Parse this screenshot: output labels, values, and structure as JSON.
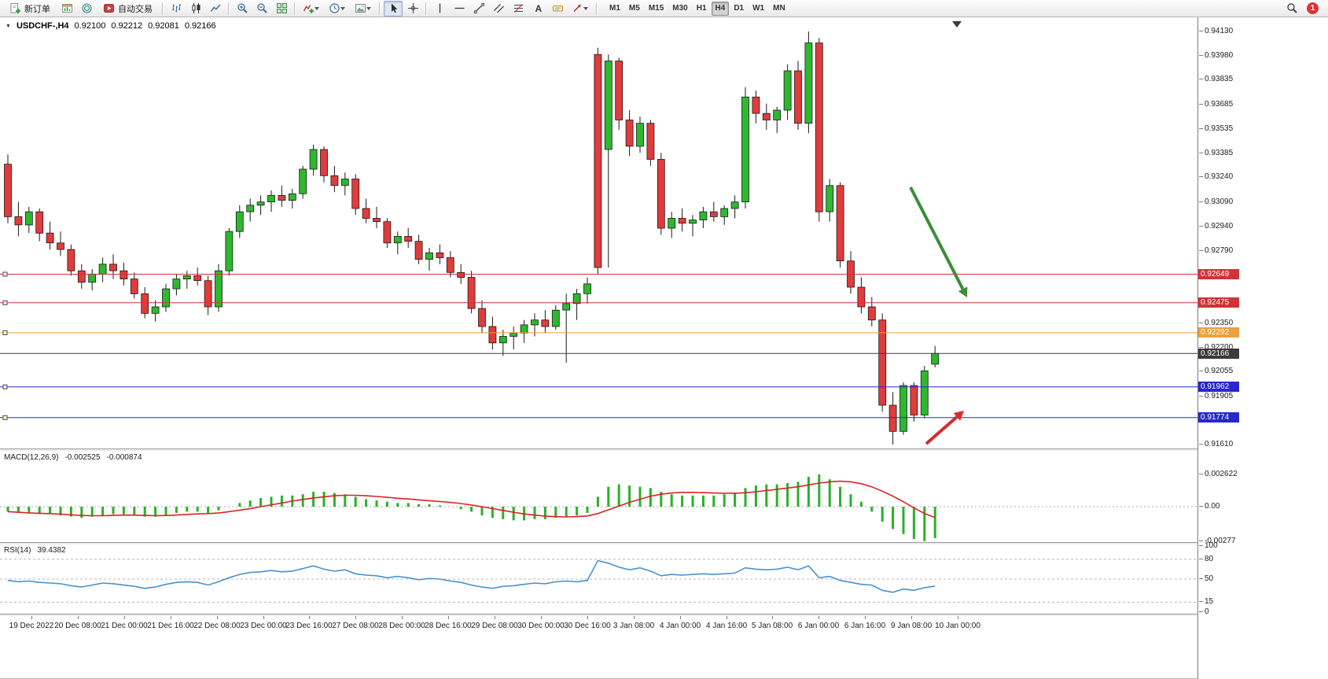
{
  "toolbar": {
    "new_order": "新订单",
    "autotrade": "自动交易",
    "timeframes": [
      "M1",
      "M5",
      "M15",
      "M30",
      "H1",
      "H4",
      "D1",
      "W1",
      "MN"
    ],
    "active_timeframe": "H4",
    "notification_count": "1"
  },
  "chart_header": {
    "symbol_period": "USDCHF-,H4",
    "open": "0.92100",
    "high": "0.92212",
    "low": "0.92081",
    "close": "0.92166"
  },
  "indicators": {
    "macd": {
      "name": "MACD(12,26,9)",
      "main_value": "-0.002525",
      "signal_value": "-0.000874"
    },
    "rsi": {
      "name": "RSI(14)",
      "value": "39.4382"
    }
  },
  "chart_data": [
    {
      "type": "candlestick",
      "title": "USDCHF-,H4",
      "timeframe": "H4",
      "ylim": [
        0.9161,
        0.9413
      ],
      "y_ticks": [
        "0.94130",
        "0.93980",
        "0.93835",
        "0.93685",
        "0.93535",
        "0.93385",
        "0.93240",
        "0.93090",
        "0.92940",
        "0.92790",
        "0.92350",
        "0.92200",
        "0.92055",
        "0.91905",
        "0.91610"
      ],
      "x_labels": [
        "19 Dec 2022",
        "20 Dec 08:00",
        "21 Dec 00:00",
        "21 Dec 16:00",
        "22 Dec 08:00",
        "23 Dec 00:00",
        "23 Dec 16:00",
        "27 Dec 08:00",
        "28 Dec 00:00",
        "28 Dec 16:00",
        "29 Dec 08:00",
        "30 Dec 00:00",
        "30 Dec 16:00",
        "3 Jan 08:00",
        "4 Jan 00:00",
        "4 Jan 16:00",
        "5 Jan 08:00",
        "6 Jan 00:00",
        "6 Jan 16:00",
        "9 Jan 08:00",
        "10 Jan 00:00"
      ],
      "up_color": "#2db82d",
      "down_color": "#e23b3b",
      "candles": [
        [
          0.9332,
          0.9338,
          0.9296,
          0.93
        ],
        [
          0.93,
          0.9309,
          0.9288,
          0.9295
        ],
        [
          0.9295,
          0.9306,
          0.929,
          0.9303
        ],
        [
          0.9303,
          0.9305,
          0.9285,
          0.929
        ],
        [
          0.929,
          0.9297,
          0.928,
          0.9284
        ],
        [
          0.9284,
          0.9291,
          0.9276,
          0.928
        ],
        [
          0.928,
          0.9283,
          0.9264,
          0.9267
        ],
        [
          0.9267,
          0.9271,
          0.9256,
          0.926
        ],
        [
          0.926,
          0.9268,
          0.9255,
          0.9265
        ],
        [
          0.9265,
          0.9275,
          0.926,
          0.9271
        ],
        [
          0.9271,
          0.9277,
          0.9262,
          0.9267
        ],
        [
          0.9267,
          0.9272,
          0.9258,
          0.9262
        ],
        [
          0.9262,
          0.9266,
          0.925,
          0.9253
        ],
        [
          0.9253,
          0.9257,
          0.9238,
          0.9241
        ],
        [
          0.9241,
          0.9249,
          0.9236,
          0.9245
        ],
        [
          0.9245,
          0.9259,
          0.9242,
          0.9256
        ],
        [
          0.9256,
          0.9265,
          0.9252,
          0.9262
        ],
        [
          0.9262,
          0.9267,
          0.9256,
          0.9264
        ],
        [
          0.9264,
          0.9269,
          0.9258,
          0.9261
        ],
        [
          0.9261,
          0.9264,
          0.924,
          0.9245
        ],
        [
          0.9245,
          0.9271,
          0.9242,
          0.9267
        ],
        [
          0.9267,
          0.9293,
          0.9264,
          0.9291
        ],
        [
          0.9291,
          0.9307,
          0.9287,
          0.9303
        ],
        [
          0.9303,
          0.9311,
          0.9297,
          0.9307
        ],
        [
          0.9307,
          0.9313,
          0.9301,
          0.9309
        ],
        [
          0.9309,
          0.9316,
          0.9303,
          0.9313
        ],
        [
          0.9313,
          0.9319,
          0.9306,
          0.931
        ],
        [
          0.931,
          0.9317,
          0.9305,
          0.9314
        ],
        [
          0.9314,
          0.9331,
          0.9311,
          0.9329
        ],
        [
          0.9329,
          0.9344,
          0.9325,
          0.9341
        ],
        [
          0.9341,
          0.9343,
          0.9321,
          0.9325
        ],
        [
          0.9325,
          0.9331,
          0.9315,
          0.9319
        ],
        [
          0.9319,
          0.9327,
          0.9313,
          0.9323
        ],
        [
          0.9323,
          0.9326,
          0.9301,
          0.9305
        ],
        [
          0.9305,
          0.9311,
          0.9296,
          0.9299
        ],
        [
          0.9299,
          0.9306,
          0.9293,
          0.9297
        ],
        [
          0.9297,
          0.9299,
          0.9281,
          0.9284
        ],
        [
          0.9284,
          0.9291,
          0.9277,
          0.9288
        ],
        [
          0.9288,
          0.9293,
          0.9281,
          0.9285
        ],
        [
          0.9285,
          0.9289,
          0.9271,
          0.9274
        ],
        [
          0.9274,
          0.9281,
          0.9267,
          0.9278
        ],
        [
          0.9278,
          0.9283,
          0.9271,
          0.9275
        ],
        [
          0.9275,
          0.9279,
          0.9263,
          0.9266
        ],
        [
          0.9266,
          0.9271,
          0.9259,
          0.9263
        ],
        [
          0.9263,
          0.9267,
          0.9241,
          0.9244
        ],
        [
          0.9244,
          0.9249,
          0.9229,
          0.9233
        ],
        [
          0.9233,
          0.9239,
          0.9219,
          0.9223
        ],
        [
          0.9223,
          0.9231,
          0.9215,
          0.9227
        ],
        [
          0.9227,
          0.9233,
          0.9219,
          0.9229
        ],
        [
          0.9229,
          0.9237,
          0.9223,
          0.9234
        ],
        [
          0.9234,
          0.9241,
          0.9227,
          0.9237
        ],
        [
          0.9237,
          0.9243,
          0.9229,
          0.9233
        ],
        [
          0.9233,
          0.9246,
          0.9231,
          0.9243
        ],
        [
          0.9243,
          0.9253,
          0.9211,
          0.9247
        ],
        [
          0.9247,
          0.9256,
          0.9237,
          0.9253
        ],
        [
          0.9253,
          0.9263,
          0.9247,
          0.9259
        ],
        [
          0.9399,
          0.9403,
          0.9265,
          0.9269
        ],
        [
          0.9341,
          0.9399,
          0.9269,
          0.9395
        ],
        [
          0.9395,
          0.9397,
          0.9353,
          0.9359
        ],
        [
          0.9359,
          0.9365,
          0.9337,
          0.9343
        ],
        [
          0.9343,
          0.9361,
          0.9339,
          0.9357
        ],
        [
          0.9357,
          0.9359,
          0.9331,
          0.9335
        ],
        [
          0.9335,
          0.9339,
          0.9289,
          0.9293
        ],
        [
          0.9293,
          0.9303,
          0.9287,
          0.9299
        ],
        [
          0.9299,
          0.9305,
          0.9291,
          0.9296
        ],
        [
          0.9296,
          0.9301,
          0.9288,
          0.9298
        ],
        [
          0.9298,
          0.9306,
          0.9293,
          0.9303
        ],
        [
          0.9303,
          0.9309,
          0.9297,
          0.93
        ],
        [
          0.93,
          0.9307,
          0.9295,
          0.9305
        ],
        [
          0.9305,
          0.9313,
          0.9299,
          0.9309
        ],
        [
          0.9309,
          0.9379,
          0.9305,
          0.9373
        ],
        [
          0.9373,
          0.9377,
          0.9357,
          0.9363
        ],
        [
          0.9363,
          0.9369,
          0.9353,
          0.9359
        ],
        [
          0.9359,
          0.9367,
          0.9351,
          0.9365
        ],
        [
          0.9365,
          0.9393,
          0.9359,
          0.9389
        ],
        [
          0.9389,
          0.9395,
          0.9353,
          0.9357
        ],
        [
          0.9357,
          0.9413,
          0.9351,
          0.9406
        ],
        [
          0.9406,
          0.9409,
          0.9297,
          0.9303
        ],
        [
          0.9303,
          0.9323,
          0.9297,
          0.9319
        ],
        [
          0.9319,
          0.9321,
          0.9269,
          0.9273
        ],
        [
          0.9273,
          0.9279,
          0.9253,
          0.9257
        ],
        [
          0.9257,
          0.9263,
          0.9241,
          0.9245
        ],
        [
          0.9245,
          0.9251,
          0.9233,
          0.9237
        ],
        [
          0.9237,
          0.9241,
          0.9181,
          0.9185
        ],
        [
          0.9185,
          0.9193,
          0.9161,
          0.9169
        ],
        [
          0.9169,
          0.9199,
          0.9167,
          0.9197
        ],
        [
          0.9197,
          0.9199,
          0.9175,
          0.9179
        ],
        [
          0.9179,
          0.9209,
          0.9177,
          0.9206
        ],
        [
          0.921,
          0.92212,
          0.92081,
          0.92166
        ]
      ],
      "hlines": [
        {
          "price": 0.92649,
          "label": "0.92649",
          "color": "#cf3434"
        },
        {
          "price": 0.92475,
          "label": "0.92475",
          "color": "#cf3434"
        },
        {
          "price": 0.92292,
          "label": "0.92292",
          "color": "#eba13f"
        },
        {
          "price": 0.92166,
          "label": "0.92166",
          "color": "#3b3b3b",
          "role": "current-price-line"
        },
        {
          "price": 0.91962,
          "label": "0.91962",
          "color": "#2727cf"
        },
        {
          "price": 0.91774,
          "label": "0.91774",
          "color": "#2727cf"
        }
      ],
      "arrows": [
        {
          "from": [
            1158,
            216
          ],
          "to": [
            1230,
            356
          ],
          "color": "#3c8c3c",
          "name": "down-arrow-annotation"
        },
        {
          "from": [
            1178,
            542
          ],
          "to": [
            1226,
            500
          ],
          "color": "#d62c2c",
          "name": "up-arrow-annotation"
        }
      ]
    },
    {
      "type": "bar",
      "axis_labels": [
        "0.002622",
        "0.00",
        "-0.00277"
      ],
      "axis_values": [
        0.002622,
        0,
        -0.00277
      ],
      "histogram_color": "#29b129",
      "signal_color": "#dd2222",
      "histogram": [
        -0.0004,
        -0.0005,
        -0.0005,
        -0.0006,
        -0.0006,
        -0.0007,
        -0.0008,
        -0.0009,
        -0.0008,
        -0.0007,
        -0.0006,
        -0.0006,
        -0.0007,
        -0.0008,
        -0.0008,
        -0.0007,
        -0.0005,
        -0.0004,
        -0.0004,
        -0.0005,
        -0.0003,
        0,
        0.0003,
        0.0005,
        0.0007,
        0.0008,
        0.0009,
        0.0009,
        0.001,
        0.0012,
        0.0012,
        0.0011,
        0.001,
        0.0008,
        0.0006,
        0.0005,
        0.0004,
        0.0003,
        0.0003,
        0.0002,
        0.0002,
        0.0001,
        0,
        -0.0002,
        -0.0004,
        -0.0007,
        -0.0009,
        -0.001,
        -0.0011,
        -0.0011,
        -0.001,
        -0.001,
        -0.0009,
        -0.0008,
        -0.0007,
        -0.0005,
        0.0008,
        0.0016,
        0.0018,
        0.0017,
        0.0016,
        0.0015,
        0.0012,
        0.001,
        0.0009,
        0.0009,
        0.0009,
        0.0009,
        0.001,
        0.0011,
        0.0015,
        0.0017,
        0.0018,
        0.0018,
        0.0019,
        0.002,
        0.0024,
        0.0026,
        0.0022,
        0.0016,
        0.001,
        0.0004,
        -0.0004,
        -0.0012,
        -0.0018,
        -0.0022,
        -0.0026,
        -0.00277,
        -0.002525
      ],
      "signal": [
        -0.0004,
        -0.00045,
        -0.0005,
        -0.00053,
        -0.00056,
        -0.0006,
        -0.00065,
        -0.0007,
        -0.00073,
        -0.00073,
        -0.0007,
        -0.00067,
        -0.00068,
        -0.0007,
        -0.00072,
        -0.00071,
        -0.00067,
        -0.00062,
        -0.00058,
        -0.00056,
        -0.0005,
        -0.0004,
        -0.00028,
        -0.00015,
        0,
        0.00015,
        0.0003,
        0.00045,
        0.00058,
        0.0007,
        0.0008,
        0.00088,
        0.00092,
        0.00092,
        0.00088,
        0.00082,
        0.00075,
        0.00068,
        0.00062,
        0.00055,
        0.00048,
        0.00042,
        0.00035,
        0.00025,
        0.00014,
        0,
        -0.00015,
        -0.0003,
        -0.00045,
        -0.00058,
        -0.00068,
        -0.00076,
        -0.0008,
        -0.00082,
        -0.0008,
        -0.00075,
        -0.00055,
        -0.00025,
        5e-05,
        0.00035,
        0.0006,
        0.00085,
        0.001,
        0.0011,
        0.00115,
        0.00115,
        0.00113,
        0.0011,
        0.00108,
        0.00108,
        0.00112,
        0.0012,
        0.0013,
        0.0014,
        0.0015,
        0.0016,
        0.00175,
        0.0019,
        0.002,
        0.00205,
        0.002,
        0.00185,
        0.0016,
        0.00125,
        0.00085,
        0.0004,
        -0.0001,
        -0.00055,
        -0.000874
      ]
    },
    {
      "type": "line",
      "axis_labels": [
        "100",
        "80",
        "50",
        "15",
        "0"
      ],
      "axis_values": [
        100,
        80,
        50,
        15,
        0
      ],
      "levels": [
        80,
        50,
        15
      ],
      "line_color": "#4892cc",
      "series": [
        48,
        46,
        47,
        45,
        44,
        43,
        40,
        38,
        41,
        44,
        43,
        41,
        39,
        36,
        38,
        42,
        45,
        46,
        45,
        41,
        46,
        52,
        57,
        60,
        61,
        63,
        61,
        62,
        66,
        70,
        65,
        62,
        64,
        58,
        56,
        55,
        52,
        54,
        52,
        49,
        51,
        50,
        47,
        45,
        41,
        38,
        36,
        39,
        40,
        42,
        44,
        43,
        46,
        47,
        46,
        48,
        78,
        74,
        68,
        64,
        67,
        62,
        55,
        57,
        56,
        57,
        58,
        57,
        58,
        59,
        67,
        65,
        64,
        65,
        68,
        64,
        70,
        52,
        54,
        48,
        45,
        42,
        41,
        33,
        30,
        35,
        33,
        37,
        39.4382
      ]
    }
  ]
}
